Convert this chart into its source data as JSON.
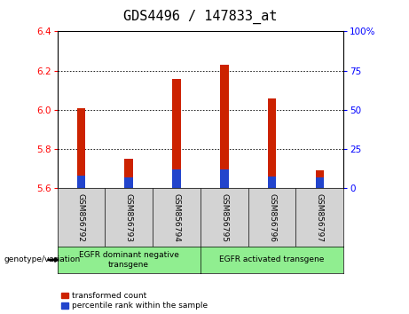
{
  "title": "GDS4496 / 147833_at",
  "samples": [
    "GSM856792",
    "GSM856793",
    "GSM856794",
    "GSM856795",
    "GSM856796",
    "GSM856797"
  ],
  "red_values": [
    6.01,
    5.75,
    6.16,
    6.23,
    6.06,
    5.69
  ],
  "blue_values": [
    5.665,
    5.655,
    5.695,
    5.695,
    5.66,
    5.655
  ],
  "base": 5.6,
  "ylim": [
    5.6,
    6.4
  ],
  "yticks_left": [
    5.6,
    5.8,
    6.0,
    6.2,
    6.4
  ],
  "yticks_right": [
    0,
    25,
    50,
    75,
    100
  ],
  "bar_width": 0.18,
  "red_color": "#cc2200",
  "blue_color": "#2244cc",
  "group1_label": "EGFR dominant negative\ntransgene",
  "group2_label": "EGFR activated transgene",
  "genotype_label": "genotype/variation",
  "legend1": "transformed count",
  "legend2": "percentile rank within the sample",
  "group1_color": "#90ee90",
  "group2_color": "#90ee90",
  "title_fontsize": 11,
  "tick_fontsize": 7.5,
  "sample_fontsize": 6.5,
  "group_fontsize": 6.5,
  "legend_fontsize": 6.5
}
